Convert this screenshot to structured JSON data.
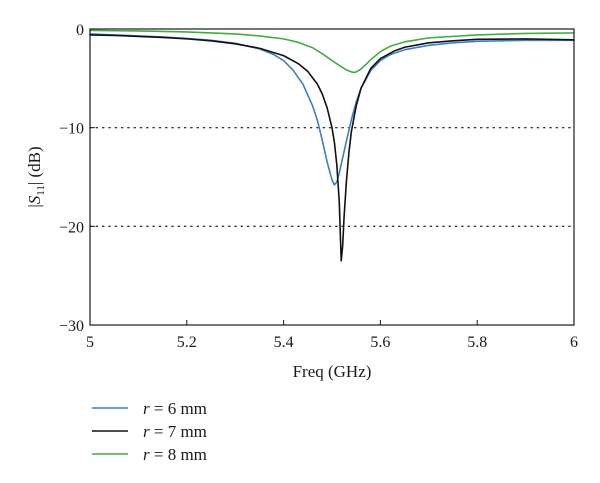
{
  "chart_data": {
    "type": "line",
    "title": "",
    "xlabel": "Freq (GHz)",
    "ylabel": {
      "pre": "|",
      "italic": "S",
      "sub": "11",
      "post": "| (dB)"
    },
    "xlim": [
      5,
      6
    ],
    "ylim": [
      -30,
      0
    ],
    "xticks": [
      5,
      5.2,
      5.4,
      5.6,
      5.8,
      6
    ],
    "xtick_labels": [
      "5",
      "5.2",
      "5.4",
      "5.6",
      "5.8",
      "6"
    ],
    "yticks": [
      0,
      -10,
      -20,
      -30
    ],
    "ytick_labels": [
      "0",
      "−10",
      "−20",
      "−30"
    ],
    "grid": {
      "y": [
        -10,
        -20
      ],
      "style": "dotted"
    },
    "legend_position": "bottom-left",
    "series": [
      {
        "name": "r = 6 mm",
        "label_var": "r",
        "label_rest": " = 6 mm",
        "color": "#3f7fc1",
        "x": [
          5.0,
          5.05,
          5.1,
          5.15,
          5.2,
          5.25,
          5.3,
          5.35,
          5.38,
          5.4,
          5.42,
          5.44,
          5.46,
          5.47,
          5.48,
          5.49,
          5.5,
          5.505,
          5.51,
          5.515,
          5.52,
          5.53,
          5.54,
          5.55,
          5.56,
          5.58,
          5.6,
          5.62,
          5.65,
          5.7,
          5.75,
          5.8,
          5.9,
          6.0
        ],
        "y": [
          -0.5,
          -0.6,
          -0.7,
          -0.8,
          -0.95,
          -1.15,
          -1.45,
          -2.0,
          -2.6,
          -3.2,
          -4.2,
          -5.6,
          -7.8,
          -9.3,
          -11.3,
          -13.5,
          -15.3,
          -15.8,
          -15.5,
          -14.6,
          -13.5,
          -11.3,
          -9.2,
          -7.4,
          -6.0,
          -4.2,
          -3.2,
          -2.6,
          -2.1,
          -1.65,
          -1.4,
          -1.25,
          -1.15,
          -1.15
        ]
      },
      {
        "name": "r = 7 mm",
        "label_var": "r",
        "label_rest": " = 7 mm",
        "color": "#111111",
        "x": [
          5.0,
          5.05,
          5.1,
          5.15,
          5.2,
          5.25,
          5.3,
          5.35,
          5.4,
          5.43,
          5.45,
          5.47,
          5.48,
          5.49,
          5.5,
          5.505,
          5.51,
          5.515,
          5.519,
          5.522,
          5.525,
          5.53,
          5.535,
          5.54,
          5.55,
          5.56,
          5.58,
          5.6,
          5.63,
          5.65,
          5.7,
          5.75,
          5.8,
          5.9,
          6.0
        ],
        "y": [
          -0.6,
          -0.65,
          -0.75,
          -0.85,
          -1.0,
          -1.2,
          -1.5,
          -1.95,
          -2.7,
          -3.5,
          -4.3,
          -5.6,
          -6.6,
          -8.0,
          -10.0,
          -11.5,
          -13.8,
          -17.5,
          -23.5,
          -22.0,
          -19.0,
          -15.3,
          -12.5,
          -10.4,
          -7.8,
          -6.0,
          -4.0,
          -3.0,
          -2.2,
          -1.85,
          -1.4,
          -1.2,
          -1.05,
          -1.0,
          -1.1
        ]
      },
      {
        "name": "r = 8 mm",
        "label_var": "r",
        "label_rest": " = 8 mm",
        "color": "#44ab44",
        "x": [
          5.0,
          5.1,
          5.2,
          5.3,
          5.35,
          5.4,
          5.43,
          5.46,
          5.48,
          5.5,
          5.52,
          5.53,
          5.54,
          5.545,
          5.55,
          5.56,
          5.57,
          5.58,
          5.6,
          5.62,
          5.65,
          5.7,
          5.8,
          5.9,
          6.0
        ],
        "y": [
          -0.15,
          -0.2,
          -0.3,
          -0.5,
          -0.7,
          -1.0,
          -1.35,
          -1.9,
          -2.5,
          -3.2,
          -3.85,
          -4.15,
          -4.35,
          -4.4,
          -4.35,
          -4.05,
          -3.6,
          -3.1,
          -2.3,
          -1.75,
          -1.3,
          -0.9,
          -0.6,
          -0.45,
          -0.4
        ]
      }
    ]
  }
}
